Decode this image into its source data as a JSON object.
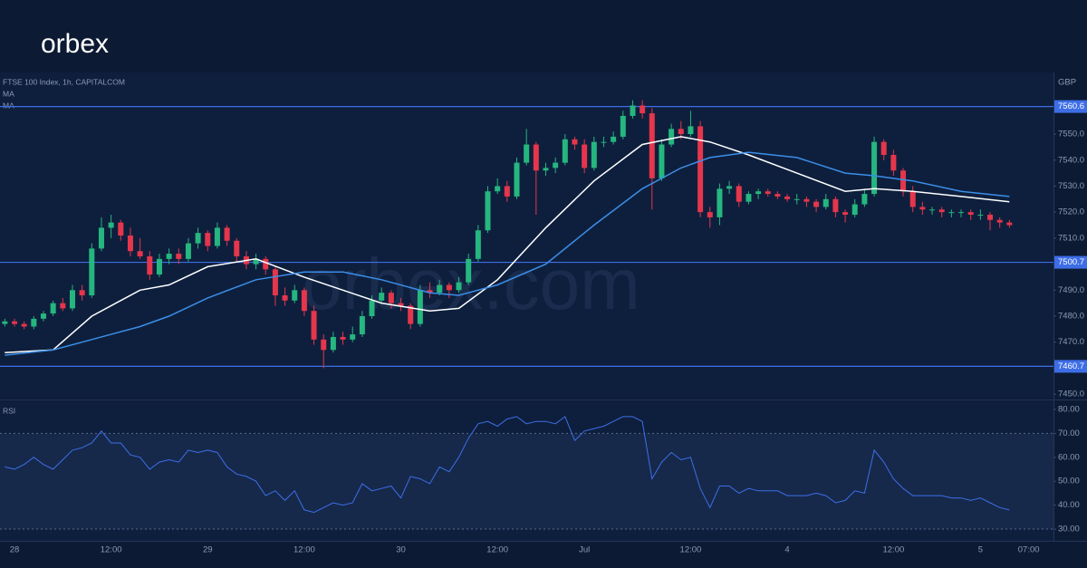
{
  "logo": "orbex",
  "watermark": "orbex.com",
  "chart_data": {
    "type": "candlestick",
    "title": "FTSE 100 Index, 1h, CAPITALCOM",
    "currency": "GBP",
    "categories": [
      null,
      "28",
      null,
      null,
      null,
      null,
      null,
      null,
      null,
      null,
      null,
      "12:00",
      null,
      null,
      null,
      null,
      null,
      null,
      null,
      null,
      null,
      "29",
      null,
      null,
      null,
      null,
      null,
      null,
      null,
      null,
      null,
      "12:00",
      null,
      null,
      null,
      null,
      null,
      null,
      null,
      null,
      null,
      "30",
      null,
      null,
      null,
      null,
      null,
      null,
      null,
      null,
      null,
      "12:00",
      null,
      null,
      null,
      null,
      null,
      null,
      null,
      null,
      "Jul",
      null,
      null,
      null,
      null,
      null,
      null,
      null,
      null,
      null,
      null,
      "12:00",
      null,
      null,
      null,
      null,
      null,
      null,
      null,
      null,
      null,
      "4",
      null,
      null,
      null,
      null,
      null,
      null,
      null,
      null,
      null,
      null,
      "12:00",
      null,
      null,
      null,
      null,
      null,
      null,
      null,
      null,
      "5",
      null,
      null,
      null,
      null,
      "07:00"
    ],
    "ohlc": [
      [
        7477,
        7479,
        7476,
        7478
      ],
      [
        7478,
        7479,
        7476,
        7477
      ],
      [
        7477,
        7478,
        7475,
        7476
      ],
      [
        7476,
        7480,
        7475,
        7479
      ],
      [
        7479,
        7482,
        7478,
        7481
      ],
      [
        7481,
        7486,
        7480,
        7485
      ],
      [
        7485,
        7487,
        7482,
        7483
      ],
      [
        7483,
        7492,
        7482,
        7490
      ],
      [
        7490,
        7492,
        7486,
        7488
      ],
      [
        7488,
        7508,
        7487,
        7506
      ],
      [
        7506,
        7518,
        7505,
        7514
      ],
      [
        7514,
        7519,
        7510,
        7516
      ],
      [
        7516,
        7517,
        7509,
        7511
      ],
      [
        7511,
        7514,
        7503,
        7505
      ],
      [
        7505,
        7510,
        7502,
        7503
      ],
      [
        7503,
        7505,
        7494,
        7496
      ],
      [
        7496,
        7504,
        7495,
        7502
      ],
      [
        7502,
        7506,
        7500,
        7504
      ],
      [
        7504,
        7506,
        7500,
        7502
      ],
      [
        7502,
        7510,
        7501,
        7508
      ],
      [
        7508,
        7514,
        7506,
        7512
      ],
      [
        7512,
        7513,
        7505,
        7507
      ],
      [
        7507,
        7516,
        7506,
        7514
      ],
      [
        7514,
        7515,
        7507,
        7509
      ],
      [
        7509,
        7510,
        7501,
        7503
      ],
      [
        7503,
        7505,
        7498,
        7500
      ],
      [
        7500,
        7504,
        7498,
        7502
      ],
      [
        7502,
        7503,
        7496,
        7498
      ],
      [
        7498,
        7499,
        7484,
        7488
      ],
      [
        7488,
        7491,
        7484,
        7486
      ],
      [
        7486,
        7492,
        7485,
        7490
      ],
      [
        7490,
        7491,
        7480,
        7482
      ],
      [
        7482,
        7484,
        7469,
        7471
      ],
      [
        7471,
        7473,
        7460,
        7467
      ],
      [
        7467,
        7474,
        7466,
        7472
      ],
      [
        7472,
        7474,
        7469,
        7471
      ],
      [
        7471,
        7476,
        7470,
        7473
      ],
      [
        7473,
        7482,
        7472,
        7480
      ],
      [
        7480,
        7488,
        7479,
        7486
      ],
      [
        7486,
        7491,
        7485,
        7489
      ],
      [
        7489,
        7490,
        7483,
        7485
      ],
      [
        7485,
        7487,
        7482,
        7484
      ],
      [
        7484,
        7485,
        7475,
        7477
      ],
      [
        7477,
        7492,
        7476,
        7490
      ],
      [
        7490,
        7493,
        7487,
        7489
      ],
      [
        7489,
        7494,
        7488,
        7492
      ],
      [
        7492,
        7493,
        7487,
        7490
      ],
      [
        7490,
        7495,
        7489,
        7493
      ],
      [
        7493,
        7504,
        7492,
        7502
      ],
      [
        7502,
        7515,
        7501,
        7513
      ],
      [
        7513,
        7530,
        7512,
        7528
      ],
      [
        7528,
        7533,
        7527,
        7530
      ],
      [
        7530,
        7532,
        7524,
        7526
      ],
      [
        7526,
        7541,
        7525,
        7539
      ],
      [
        7539,
        7552,
        7538,
        7546
      ],
      [
        7546,
        7547,
        7519,
        7536
      ],
      [
        7536,
        7539,
        7534,
        7537
      ],
      [
        7537,
        7541,
        7535,
        7539
      ],
      [
        7539,
        7550,
        7538,
        7548
      ],
      [
        7548,
        7549,
        7544,
        7546
      ],
      [
        7546,
        7548,
        7535,
        7537
      ],
      [
        7537,
        7549,
        7536,
        7547
      ],
      [
        7547,
        7549,
        7545,
        7547
      ],
      [
        7547,
        7551,
        7546,
        7549
      ],
      [
        7549,
        7559,
        7548,
        7557
      ],
      [
        7557,
        7563,
        7556,
        7561
      ],
      [
        7561,
        7563,
        7556,
        7558
      ],
      [
        7558,
        7560,
        7521,
        7533
      ],
      [
        7533,
        7548,
        7532,
        7546
      ],
      [
        7546,
        7554,
        7545,
        7552
      ],
      [
        7552,
        7555,
        7548,
        7550
      ],
      [
        7550,
        7559,
        7549,
        7553
      ],
      [
        7553,
        7555,
        7518,
        7520
      ],
      [
        7520,
        7522,
        7514,
        7518
      ],
      [
        7518,
        7531,
        7515,
        7529
      ],
      [
        7529,
        7532,
        7527,
        7530
      ],
      [
        7530,
        7531,
        7522,
        7524
      ],
      [
        7524,
        7528,
        7523,
        7527
      ],
      [
        7527,
        7529,
        7525,
        7528
      ],
      [
        7528,
        7529,
        7526,
        7527
      ],
      [
        7527,
        7528,
        7525,
        7526
      ],
      [
        7526,
        7527,
        7524,
        7525
      ],
      [
        7525,
        7527,
        7523,
        7525
      ],
      [
        7525,
        7526,
        7522,
        7524
      ],
      [
        7524,
        7525,
        7520,
        7522
      ],
      [
        7522,
        7527,
        7521,
        7525
      ],
      [
        7525,
        7526,
        7518,
        7520
      ],
      [
        7520,
        7521,
        7516,
        7519
      ],
      [
        7519,
        7525,
        7518,
        7523
      ],
      [
        7523,
        7529,
        7522,
        7527
      ],
      [
        7527,
        7549,
        7526,
        7547
      ],
      [
        7547,
        7548,
        7540,
        7542
      ],
      [
        7542,
        7544,
        7534,
        7536
      ],
      [
        7536,
        7537,
        7526,
        7528
      ],
      [
        7528,
        7530,
        7520,
        7522
      ],
      [
        7522,
        7524,
        7519,
        7521
      ],
      [
        7521,
        7522,
        7519,
        7521
      ],
      [
        7521,
        7522,
        7518,
        7520
      ],
      [
        7520,
        7521,
        7518,
        7520
      ],
      [
        7520,
        7521,
        7518,
        7520
      ],
      [
        7520,
        7521,
        7517,
        7519
      ],
      [
        7519,
        7521,
        7517,
        7519
      ],
      [
        7519,
        7520,
        7513,
        7517
      ],
      [
        7517,
        7518,
        7514,
        7516
      ],
      [
        7516,
        7517,
        7514,
        7515
      ],
      null,
      null
    ],
    "up_color": "#26b67f",
    "down_color": "#e5364c",
    "series": [
      {
        "name": "MA",
        "color": "#ffffff",
        "x": [
          0,
          5,
          9,
          14,
          17,
          21,
          26,
          31,
          35,
          39,
          44,
          47,
          51,
          56,
          61,
          66,
          70,
          73,
          77,
          82,
          87,
          90,
          94,
          99,
          104
        ],
        "values": [
          7466,
          7467,
          7480,
          7490,
          7492,
          7499,
          7502,
          7495,
          7490,
          7485,
          7482,
          7483,
          7494,
          7514,
          7532,
          7546,
          7549,
          7547,
          7542,
          7535,
          7528,
          7529,
          7528,
          7526,
          7524
        ]
      },
      {
        "name": "MA",
        "color": "#3b8ee8",
        "x": [
          0,
          5,
          9,
          14,
          17,
          21,
          26,
          31,
          35,
          39,
          44,
          47,
          51,
          56,
          61,
          66,
          70,
          73,
          77,
          82,
          87,
          90,
          94,
          99,
          104
        ],
        "values": [
          7465,
          7467,
          7471,
          7476,
          7480,
          7487,
          7494,
          7497,
          7497,
          7494,
          7489,
          7488,
          7492,
          7500,
          7515,
          7529,
          7537,
          7541,
          7543,
          7541,
          7535,
          7534,
          7532,
          7528,
          7526
        ]
      }
    ],
    "ylim": [
      7448.3,
      7573.7
    ],
    "yticks": [
      {
        "value": 7450,
        "label": "7450.0"
      },
      {
        "value": 7460,
        "label": "7460.0"
      },
      {
        "value": 7470,
        "label": "7470.0"
      },
      {
        "value": 7480,
        "label": "7480.0"
      },
      {
        "value": 7490,
        "label": "7490.0"
      },
      {
        "value": 7500,
        "label": "7500.0"
      },
      {
        "value": 7510,
        "label": "7510.0"
      },
      {
        "value": 7520,
        "label": "7520.0"
      },
      {
        "value": 7530,
        "label": "7530.0"
      },
      {
        "value": 7540,
        "label": "7540.0"
      },
      {
        "value": 7550,
        "label": "7550.0"
      }
    ],
    "levels": [
      7560.6,
      7500.7,
      7460.7
    ],
    "level_color": "#3d6ee6",
    "rsi": {
      "title": "RSI",
      "color": "#3d6ee6",
      "values": [
        56,
        55,
        57,
        60,
        57,
        55,
        59,
        63,
        64,
        66,
        71,
        66,
        66,
        61,
        60,
        55,
        58,
        59,
        58,
        63,
        62,
        63,
        62,
        56,
        53,
        52,
        50,
        44,
        46,
        42,
        46,
        38,
        37,
        39,
        41,
        40,
        41,
        49,
        46,
        47,
        48,
        43,
        52,
        51,
        49,
        56,
        54,
        60,
        68,
        74,
        75,
        73,
        76,
        77,
        74,
        75,
        75,
        74,
        77,
        67,
        71,
        72,
        73,
        75,
        77,
        77,
        75,
        51,
        58,
        62,
        59,
        60,
        47,
        39,
        48,
        48,
        45,
        47,
        46,
        46,
        46,
        44,
        44,
        44,
        45,
        44,
        41,
        42,
        46,
        45,
        63,
        58,
        51,
        47,
        44,
        44,
        44,
        44,
        43,
        43,
        42,
        43,
        41,
        39,
        38,
        null,
        null
      ],
      "ylim": [
        25.1,
        83.4
      ],
      "yticks": [
        {
          "value": 30,
          "label": "30.00"
        },
        {
          "value": 40,
          "label": "40.00"
        },
        {
          "value": 50,
          "label": "50.00"
        },
        {
          "value": 60,
          "label": "60.00"
        },
        {
          "value": 70,
          "label": "70.00"
        },
        {
          "value": 80,
          "label": "80.00"
        }
      ],
      "band": [
        30,
        70
      ]
    }
  }
}
